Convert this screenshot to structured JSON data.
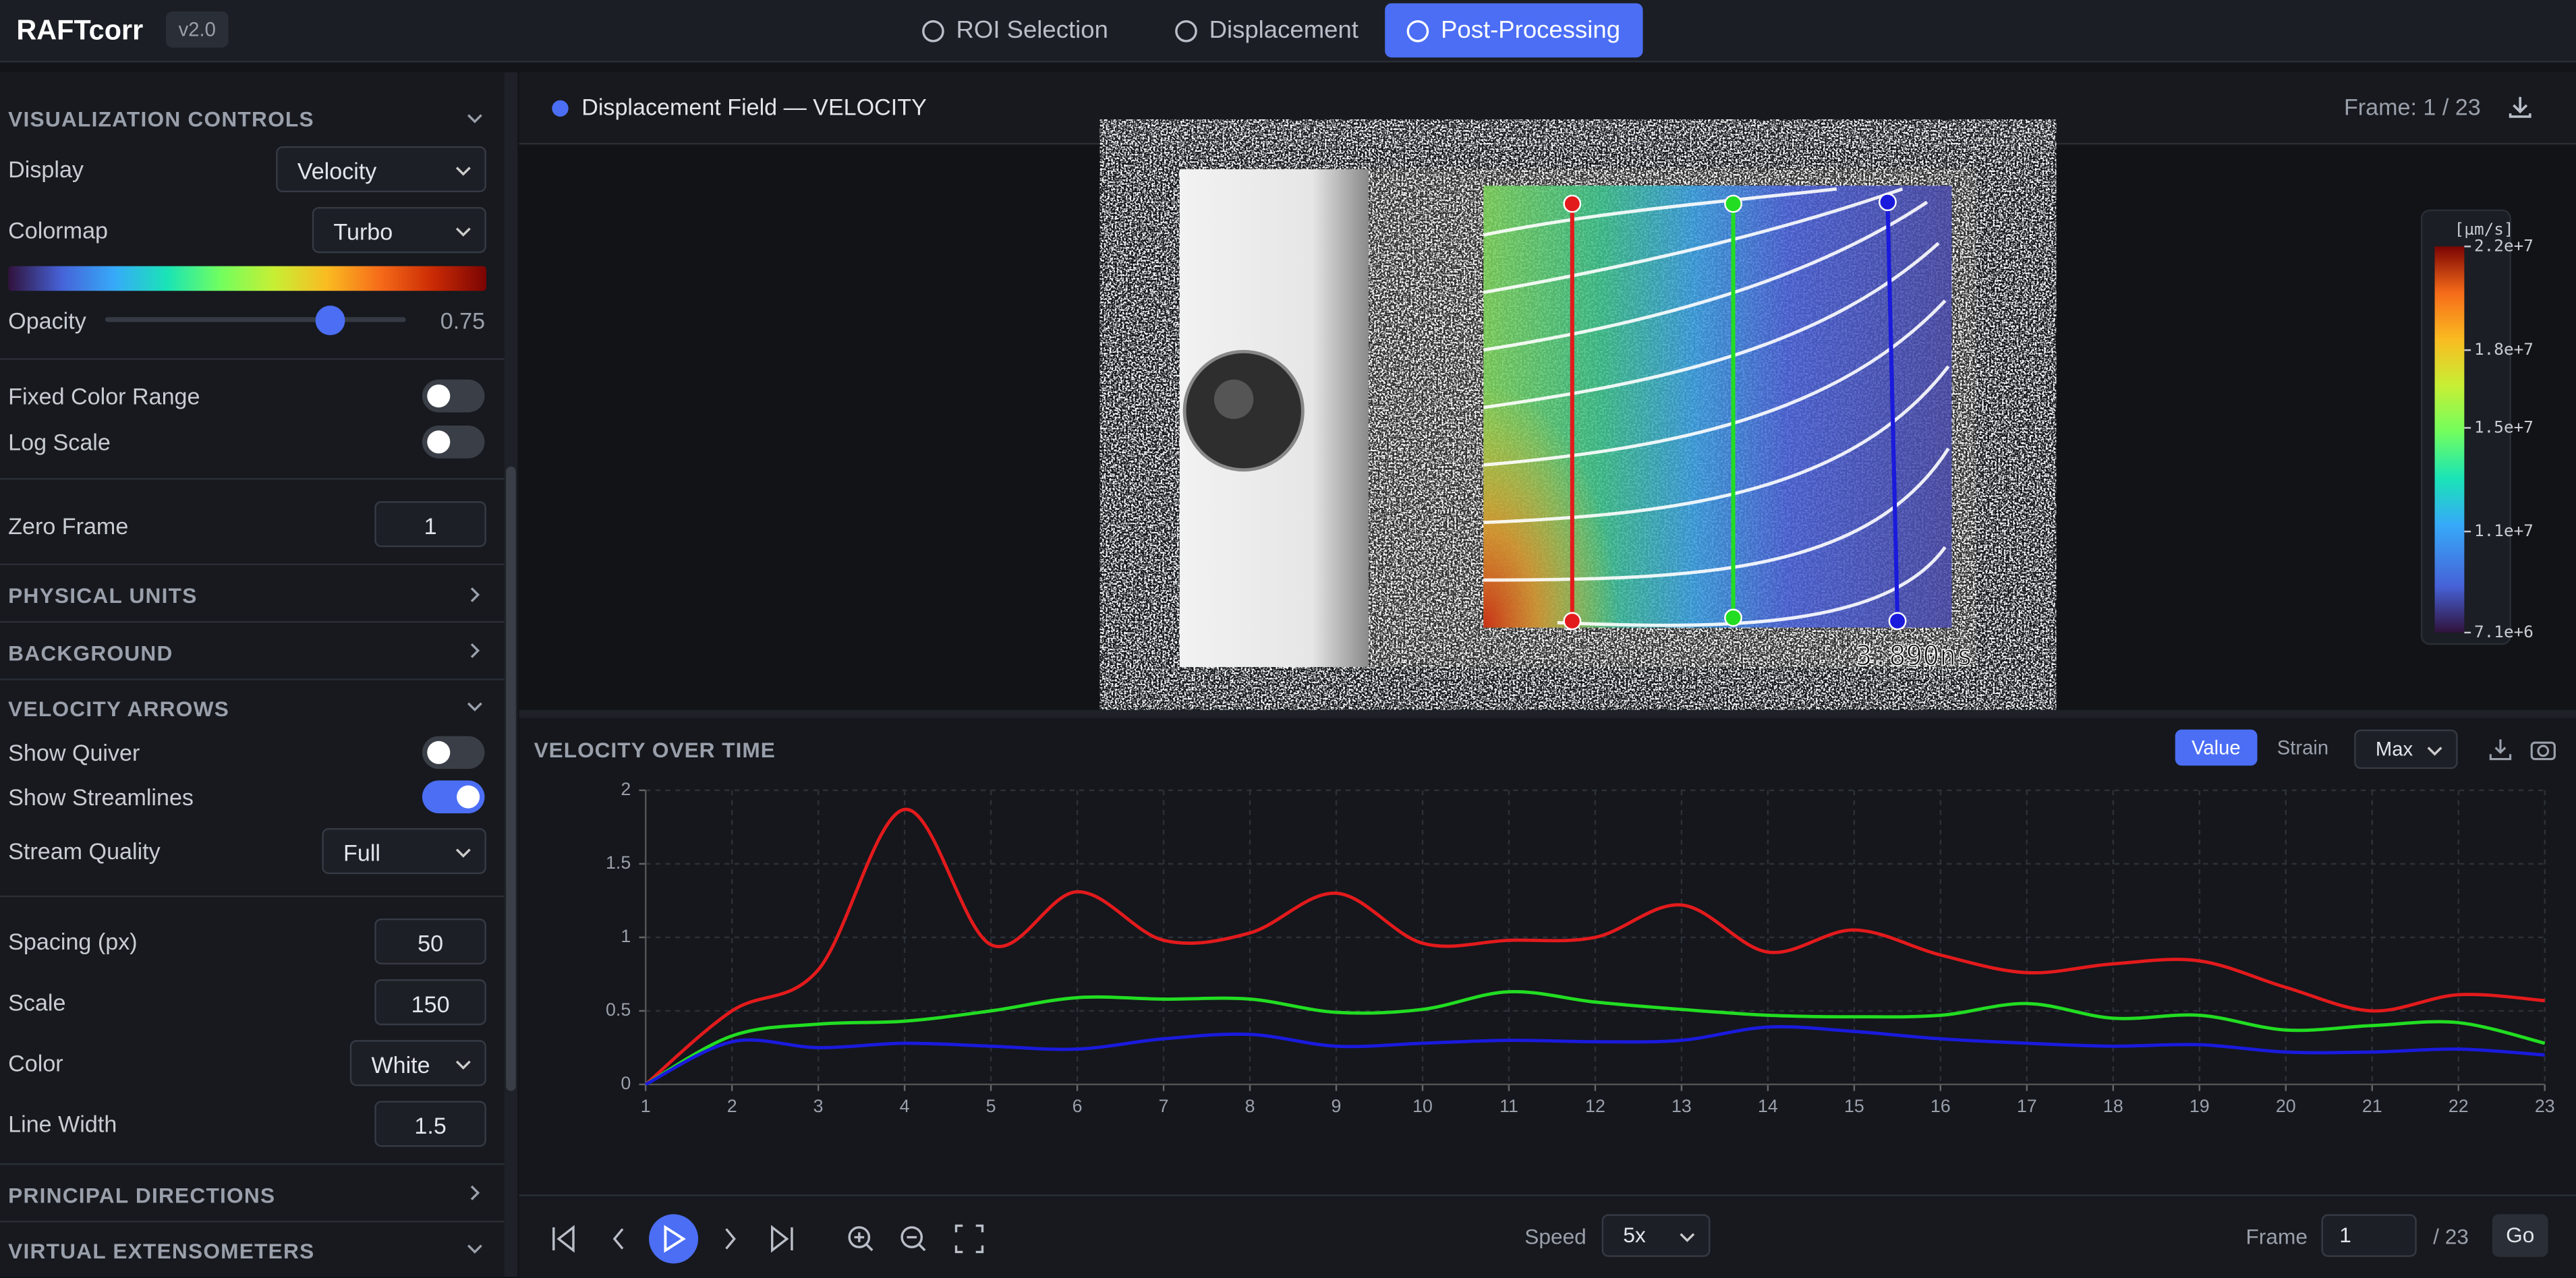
{
  "header": {
    "brand": "RAFTcorr",
    "version": "v2.0",
    "tabs": [
      "ROI Selection",
      "Displacement",
      "Post-Processing"
    ],
    "active_tab": 2
  },
  "sidebar": {
    "visualization": {
      "title": "VISUALIZATION CONTROLS",
      "display_label": "Display",
      "display": "Velocity",
      "colormap_label": "Colormap",
      "colormap": "Turbo",
      "opacity_label": "Opacity",
      "opacity": 0.75,
      "fixed_range_label": "Fixed Color Range",
      "fixed_range": false,
      "log_scale_label": "Log Scale",
      "log_scale": false,
      "zero_frame_label": "Zero Frame",
      "zero_frame": 1
    },
    "physical_units": "PHYSICAL UNITS",
    "background": "BACKGROUND",
    "arrows": {
      "title": "VELOCITY ARROWS",
      "quiver_label": "Show Quiver",
      "quiver": false,
      "streamlines_label": "Show Streamlines",
      "streamlines": true,
      "quality_label": "Stream Quality",
      "quality": "Full",
      "spacing_label": "Spacing (px)",
      "spacing": 50,
      "scale_label": "Scale",
      "scale": 150,
      "color_label": "Color",
      "color": "White",
      "width_label": "Line Width",
      "width": 1.5
    },
    "principal": "PRINCIPAL DIRECTIONS",
    "extensometers": "VIRTUAL EXTENSOMETERS"
  },
  "viewer": {
    "title": "Displacement Field — VELOCITY",
    "frame": "Frame: 1 / 23",
    "timestamp": "3.890ns",
    "colorbar": {
      "title": "[µm/s]",
      "lim": [
        7100000,
        22000000
      ],
      "ticks": [
        {
          "value": 22000000,
          "label": "2.2e+7"
        },
        {
          "value": 18000000,
          "label": "1.8e+7"
        },
        {
          "value": 15000000,
          "label": "1.5e+7"
        },
        {
          "value": 11000000,
          "label": "1.1e+7"
        },
        {
          "value": 7100000,
          "label": "7.1e+6"
        }
      ]
    }
  },
  "chart_data": {
    "type": "line",
    "title": "VELOCITY OVER TIME",
    "buttons": [
      "Value",
      "Strain"
    ],
    "mode": "Max",
    "x": [
      1,
      2,
      3,
      4,
      5,
      6,
      7,
      8,
      9,
      10,
      11,
      12,
      13,
      14,
      15,
      16,
      17,
      18,
      19,
      20,
      21,
      22,
      23
    ],
    "xlim": [
      1,
      23
    ],
    "xticks": [
      1,
      2,
      3,
      4,
      5,
      6,
      7,
      8,
      9,
      10,
      11,
      12,
      13,
      14,
      15,
      16,
      17,
      18,
      19,
      20,
      21,
      22,
      23
    ],
    "ylim": [
      0,
      2
    ],
    "yticks": [
      0,
      0.5,
      1,
      1.5,
      2
    ],
    "grid": true,
    "series": [
      {
        "color": "#e31a1c",
        "values": [
          0,
          0.5,
          0.78,
          1.87,
          0.95,
          1.31,
          0.98,
          1.03,
          1.3,
          0.96,
          0.98,
          1.0,
          1.22,
          0.9,
          1.05,
          0.88,
          0.76,
          0.82,
          0.84,
          0.66,
          0.5,
          0.61,
          0.57
        ]
      },
      {
        "color": "#22dd22",
        "values": [
          0,
          0.33,
          0.41,
          0.43,
          0.5,
          0.59,
          0.58,
          0.58,
          0.49,
          0.51,
          0.63,
          0.56,
          0.51,
          0.47,
          0.46,
          0.47,
          0.55,
          0.45,
          0.47,
          0.37,
          0.4,
          0.42,
          0.28
        ]
      },
      {
        "color": "#1a1add",
        "values": [
          0,
          0.29,
          0.25,
          0.28,
          0.26,
          0.24,
          0.31,
          0.34,
          0.26,
          0.28,
          0.3,
          0.29,
          0.3,
          0.39,
          0.36,
          0.31,
          0.28,
          0.26,
          0.27,
          0.22,
          0.22,
          0.24,
          0.2
        ]
      }
    ]
  },
  "playback": {
    "speed_label": "Speed",
    "speed": "5x",
    "frame_label": "Frame",
    "frame": 1,
    "total": "/ 23",
    "go": "Go"
  }
}
